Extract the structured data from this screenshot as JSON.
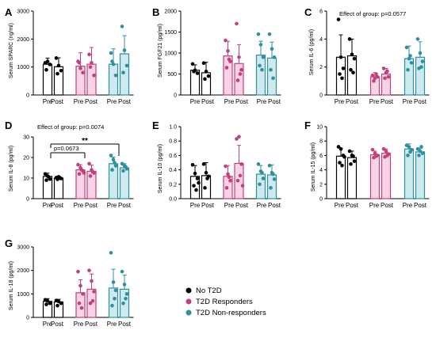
{
  "colors": {
    "No T2D": "#000000",
    "T2D Responders": "#c2407f",
    "T2D Non-responders": "#2f8f9f"
  },
  "fills": {
    "No T2D": "none",
    "T2D Responders": "#f7d3e6",
    "T2D Non-responders": "#cdeaee"
  },
  "legend": [
    "No T2D",
    "T2D Responders",
    "T2D Non-responders"
  ],
  "chart_data": [
    {
      "panel": "A",
      "type": "bar",
      "ylabel": "Serum SPARC (ng/ml)",
      "ylim": [
        0,
        3000
      ],
      "yticks": [
        "0",
        "1000",
        "2000",
        "3000"
      ],
      "tick_values": [
        0,
        1000,
        2000,
        3000
      ],
      "categories": [
        "Pre",
        "Post",
        "Pre",
        "Post",
        "Pre",
        "Post"
      ],
      "groups": [
        "No T2D",
        "No T2D",
        "T2D Responders",
        "T2D Responders",
        "T2D Non-responders",
        "T2D Non-responders"
      ],
      "values": [
        1100,
        1010,
        1030,
        1100,
        1100,
        1470
      ],
      "errors": [
        220,
        320,
        480,
        600,
        550,
        650
      ],
      "points": [
        [
          1150,
          1200,
          1090,
          900
        ],
        [
          1320,
          1050,
          870,
          760
        ],
        [
          1200,
          950,
          800,
          1150
        ],
        [
          1450,
          1150,
          700,
          1000
        ],
        [
          1500,
          1100,
          700,
          1200
        ],
        [
          2450,
          1600,
          1050,
          800
        ]
      ],
      "annotations": []
    },
    {
      "panel": "B",
      "type": "bar",
      "ylabel": "Serum FGF21 (pg/ml)",
      "ylim": [
        0,
        2000
      ],
      "yticks": [
        "0",
        "500",
        "1000",
        "1500",
        "2000"
      ],
      "tick_values": [
        0,
        500,
        1000,
        1500,
        2000
      ],
      "categories": [
        "Pre",
        "Post",
        "Pre",
        "Post",
        "Pre",
        "Post"
      ],
      "groups": [
        "No T2D",
        "No T2D",
        "T2D Responders",
        "T2D Responders",
        "T2D Non-responders",
        "T2D Non-responders"
      ],
      "values": [
        590,
        530,
        930,
        750,
        950,
        880
      ],
      "errors": [
        130,
        250,
        350,
        450,
        330,
        380
      ],
      "points": [
        [
          740,
          590,
          520,
          560
        ],
        [
          760,
          560,
          450,
          380
        ],
        [
          1300,
          1050,
          800,
          650,
          850
        ],
        [
          1700,
          900,
          600,
          350,
          500
        ],
        [
          1450,
          1200,
          900,
          700,
          600
        ],
        [
          1450,
          1100,
          900,
          600,
          400
        ]
      ],
      "annotations": []
    },
    {
      "panel": "C",
      "type": "bar",
      "ylabel": "Serum IL-6 (pg/ml)",
      "ylim": [
        0,
        6
      ],
      "yticks": [
        "0",
        "2",
        "4",
        "6"
      ],
      "tick_values": [
        0,
        2,
        4,
        6
      ],
      "categories": [
        "Pre",
        "Post",
        "Pre",
        "Post",
        "Pre",
        "Post"
      ],
      "groups": [
        "No T2D",
        "No T2D",
        "T2D Responders",
        "T2D Responders",
        "T2D Non-responders",
        "T2D Non-responders"
      ],
      "values": [
        2.7,
        2.8,
        1.3,
        1.5,
        2.6,
        2.7
      ],
      "errors": [
        1.6,
        1.2,
        0.3,
        0.4,
        0.9,
        1.1
      ],
      "points": [
        [
          5.4,
          2.7,
          1.9,
          1.5,
          1.2
        ],
        [
          4.0,
          2.9,
          2.6,
          1.8,
          1.6
        ],
        [
          1.4,
          1.2,
          1.3,
          1.0,
          1.5
        ],
        [
          1.9,
          1.6,
          1.3,
          1.2,
          1.7
        ],
        [
          3.4,
          2.6,
          2.3,
          1.8,
          2.8
        ],
        [
          4.0,
          3.0,
          2.4,
          1.9,
          2.0
        ]
      ],
      "annotations": [
        "Effect of group: p=0.0577"
      ]
    },
    {
      "panel": "D",
      "type": "bar",
      "ylabel": "Serum IL-8 (pg/ml)",
      "ylim": [
        0,
        30
      ],
      "yticks": [
        "0",
        "10",
        "20",
        "30"
      ],
      "tick_values": [
        0,
        10,
        20,
        30
      ],
      "categories": [
        "Pre",
        "Post",
        "Pre",
        "Post",
        "Pre",
        "Post"
      ],
      "groups": [
        "No T2D",
        "No T2D",
        "T2D Responders",
        "T2D Responders",
        "T2D Non-responders",
        "T2D Non-responders"
      ],
      "values": [
        10.8,
        10.0,
        14.0,
        13.3,
        17.0,
        15.0
      ],
      "errors": [
        1.6,
        1.0,
        2.5,
        3.0,
        3.2,
        2.0
      ],
      "points": [
        [
          12.0,
          11.0,
          9.5,
          9.0,
          10.5
        ],
        [
          10.2,
          10.6,
          9.8,
          9.4,
          10.0
        ],
        [
          16.5,
          15.0,
          13.5,
          12.0,
          14.0,
          12.5
        ],
        [
          17.0,
          14.0,
          12.5,
          11.0,
          13.0
        ],
        [
          21.0,
          19.0,
          16.0,
          14.0,
          17.5
        ],
        [
          17.0,
          16.0,
          14.5,
          13.5,
          15.5
        ]
      ],
      "annotations": [
        "Effect of group: p=0.0074",
        "p=0.0673",
        "**"
      ]
    },
    {
      "panel": "E",
      "type": "bar",
      "ylabel": "Serum IL-10 (pg/ml)",
      "ylim": [
        0,
        1.0
      ],
      "yticks": [
        "0.0",
        "0.2",
        "0.4",
        "0.6",
        "0.8",
        "1.0"
      ],
      "tick_values": [
        0,
        0.2,
        0.4,
        0.6,
        0.8,
        1.0
      ],
      "categories": [
        "Pre",
        "Post",
        "Pre",
        "Post",
        "Pre",
        "Post"
      ],
      "groups": [
        "No T2D",
        "No T2D",
        "T2D Responders",
        "T2D Responders",
        "T2D Non-responders",
        "T2D Non-responders"
      ],
      "values": [
        0.31,
        0.32,
        0.31,
        0.49,
        0.34,
        0.33
      ],
      "errors": [
        0.15,
        0.18,
        0.15,
        0.25,
        0.12,
        0.14
      ],
      "points": [
        [
          0.47,
          0.35,
          0.28,
          0.18,
          0.12,
          0.22
        ],
        [
          0.48,
          0.36,
          0.31,
          0.15,
          0.28
        ],
        [
          0.45,
          0.34,
          0.25,
          0.15,
          0.3
        ],
        [
          0.83,
          0.86,
          0.48,
          0.25,
          0.32,
          0.18
        ],
        [
          0.48,
          0.38,
          0.28,
          0.2,
          0.36
        ],
        [
          0.46,
          0.36,
          0.27,
          0.15,
          0.34
        ]
      ],
      "annotations": []
    },
    {
      "panel": "F",
      "type": "bar",
      "ylabel": "Serum IL-15 (pg/ml)",
      "ylim": [
        0,
        10
      ],
      "yticks": [
        "0",
        "2",
        "4",
        "6",
        "8",
        "10"
      ],
      "tick_values": [
        0,
        2,
        4,
        6,
        8,
        10
      ],
      "categories": [
        "Pre",
        "Post",
        "Pre",
        "Post",
        "Pre",
        "Post"
      ],
      "groups": [
        "No T2D",
        "No T2D",
        "T2D Responders",
        "T2D Responders",
        "T2D Non-responders",
        "T2D Non-responders"
      ],
      "values": [
        5.9,
        5.7,
        6.1,
        6.3,
        6.9,
        6.5
      ],
      "errors": [
        1.1,
        0.9,
        0.5,
        0.6,
        0.7,
        0.5
      ],
      "points": [
        [
          7.2,
          6.9,
          6.0,
          5.0,
          4.6,
          5.8
        ],
        [
          6.6,
          6.0,
          5.2,
          4.8,
          5.9
        ],
        [
          6.8,
          6.3,
          6.0,
          5.7,
          5.9
        ],
        [
          6.9,
          6.6,
          6.2,
          5.8,
          6.0
        ],
        [
          7.4,
          7.2,
          6.8,
          6.0,
          6.5
        ],
        [
          6.9,
          6.6,
          6.3,
          6.0,
          7.2
        ]
      ],
      "annotations": []
    },
    {
      "panel": "G",
      "type": "bar",
      "ylabel": "Serum IL-18 (pg/ml)",
      "ylim": [
        0,
        3000
      ],
      "yticks": [
        "0",
        "1000",
        "2000",
        "3000"
      ],
      "tick_values": [
        0,
        1000,
        2000,
        3000
      ],
      "categories": [
        "Pre",
        "Post",
        "Pre",
        "Post",
        "Pre",
        "Post"
      ],
      "groups": [
        "No T2D",
        "No T2D",
        "T2D Responders",
        "T2D Responders",
        "T2D Non-responders",
        "T2D Non-responders"
      ],
      "values": [
        680,
        660,
        1050,
        1200,
        1250,
        1200
      ],
      "errors": [
        120,
        110,
        550,
        650,
        800,
        600
      ],
      "points": [
        [
          750,
          700,
          600,
          550
        ],
        [
          720,
          680,
          600,
          500
        ],
        [
          1950,
          1350,
          1000,
          600,
          400
        ],
        [
          2000,
          1550,
          1100,
          600,
          700
        ],
        [
          2750,
          1500,
          1150,
          500,
          800
        ],
        [
          1950,
          1400,
          1000,
          600,
          800
        ]
      ],
      "annotations": []
    }
  ]
}
